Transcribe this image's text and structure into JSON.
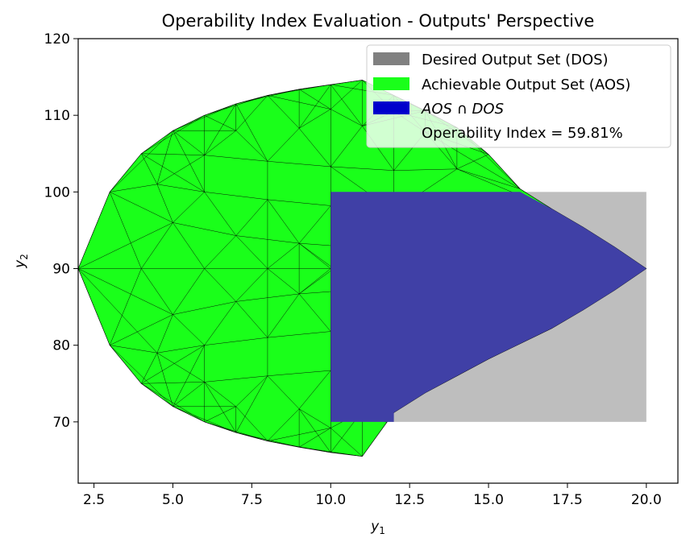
{
  "chart_data": {
    "type": "area",
    "title": "Operability Index Evaluation - Outputs' Perspective",
    "xlabel": {
      "base": "y",
      "sub": "1"
    },
    "ylabel": {
      "base": "y",
      "sub": "2"
    },
    "xlim": [
      2,
      21
    ],
    "ylim": [
      62,
      120
    ],
    "xticks": [
      2.5,
      5.0,
      7.5,
      10.0,
      12.5,
      15.0,
      17.5,
      20.0
    ],
    "xtick_labels": [
      "2.5",
      "5.0",
      "7.5",
      "10.0",
      "12.5",
      "15.0",
      "17.5",
      "20.0"
    ],
    "yticks": [
      70,
      80,
      90,
      100,
      110,
      120
    ],
    "ytick_labels": [
      "70",
      "80",
      "90",
      "100",
      "110",
      "120"
    ],
    "grid": false,
    "legend_position": "top-right",
    "legend": [
      {
        "label": "Desired Output Set (DOS)",
        "color": "#808080"
      },
      {
        "label": "Achievable Output Set (AOS)",
        "color": "#1aff1a"
      },
      {
        "label_parts": [
          "AOS",
          " ∩ ",
          "DOS"
        ],
        "color": "#0000cc"
      },
      {
        "label": "Operability Index = 59.81%"
      }
    ],
    "operability_index_percent": 59.81,
    "series": [
      {
        "name": "Desired Output Set (DOS)",
        "kind": "rectangle",
        "x_range": [
          10,
          20
        ],
        "y_range": [
          70,
          100
        ],
        "color": "#bebebe"
      },
      {
        "name": "Achievable Output Set (AOS)",
        "kind": "triangulated-region",
        "color": "#1aff1a",
        "boundary": [
          [
            2,
            90
          ],
          [
            3,
            100
          ],
          [
            4,
            105
          ],
          [
            5,
            108
          ],
          [
            6,
            110
          ],
          [
            7,
            111.5
          ],
          [
            8,
            112.6
          ],
          [
            9,
            113.4
          ],
          [
            10,
            114
          ],
          [
            11,
            114.6
          ],
          [
            12,
            112.6
          ],
          [
            13,
            110.6
          ],
          [
            14,
            108.4
          ],
          [
            15,
            104.9
          ],
          [
            16,
            100.4
          ],
          [
            17,
            97.8
          ],
          [
            18,
            95.4
          ],
          [
            19,
            92.8
          ],
          [
            20,
            90
          ],
          [
            19,
            87.2
          ],
          [
            18,
            84.6
          ],
          [
            17,
            82.2
          ],
          [
            16,
            80.2
          ],
          [
            15,
            78.2
          ],
          [
            14,
            76
          ],
          [
            13,
            73.8
          ],
          [
            12,
            71.2
          ],
          [
            11,
            65.5
          ],
          [
            10,
            66
          ],
          [
            9,
            66.7
          ],
          [
            8,
            67.5
          ],
          [
            7,
            68.6
          ],
          [
            6,
            70
          ],
          [
            5,
            72
          ],
          [
            4,
            75
          ],
          [
            3,
            80
          ]
        ],
        "mesh_nodes": [
          [
            4,
            90
          ],
          [
            6,
            90
          ],
          [
            8,
            90
          ],
          [
            10,
            90
          ],
          [
            5,
            96
          ],
          [
            7,
            94.3
          ],
          [
            9,
            93.3
          ],
          [
            11,
            92.7
          ],
          [
            5,
            84
          ],
          [
            7,
            85.7
          ],
          [
            9,
            86.7
          ],
          [
            11,
            87.3
          ],
          [
            4.5,
            101
          ],
          [
            6,
            100
          ],
          [
            8,
            99
          ],
          [
            10,
            98.2
          ],
          [
            12,
            97.5
          ],
          [
            4.5,
            79
          ],
          [
            6,
            80
          ],
          [
            8,
            81
          ],
          [
            10,
            81.8
          ],
          [
            12,
            82.5
          ],
          [
            6,
            104.8
          ],
          [
            8,
            104
          ],
          [
            10,
            103.3
          ],
          [
            12,
            102.8
          ],
          [
            14,
            103
          ],
          [
            6,
            75.2
          ],
          [
            8,
            76
          ],
          [
            10,
            76.7
          ],
          [
            12,
            77.2
          ],
          [
            14,
            77
          ],
          [
            7,
            108
          ],
          [
            9,
            108.3
          ],
          [
            11,
            108.6
          ],
          [
            13,
            107.8
          ],
          [
            7,
            72
          ],
          [
            9,
            71.7
          ],
          [
            11,
            71.4
          ],
          [
            13,
            72.2
          ],
          [
            10,
            110.8
          ],
          [
            12,
            110.5
          ],
          [
            10,
            69.2
          ],
          [
            12,
            69.5
          ]
        ]
      },
      {
        "name": "AOS ∩ DOS",
        "kind": "region",
        "color": "#4040a6",
        "boundary": [
          [
            10,
            70
          ],
          [
            12,
            70
          ],
          [
            12,
            71.2
          ],
          [
            13,
            73.8
          ],
          [
            14,
            76
          ],
          [
            15,
            78.2
          ],
          [
            16,
            80.2
          ],
          [
            17,
            82.2
          ],
          [
            18,
            84.6
          ],
          [
            19,
            87.2
          ],
          [
            20,
            90
          ],
          [
            19,
            92.8
          ],
          [
            18,
            95.4
          ],
          [
            17,
            97.8
          ],
          [
            16,
            100
          ],
          [
            10,
            100
          ]
        ]
      }
    ]
  }
}
